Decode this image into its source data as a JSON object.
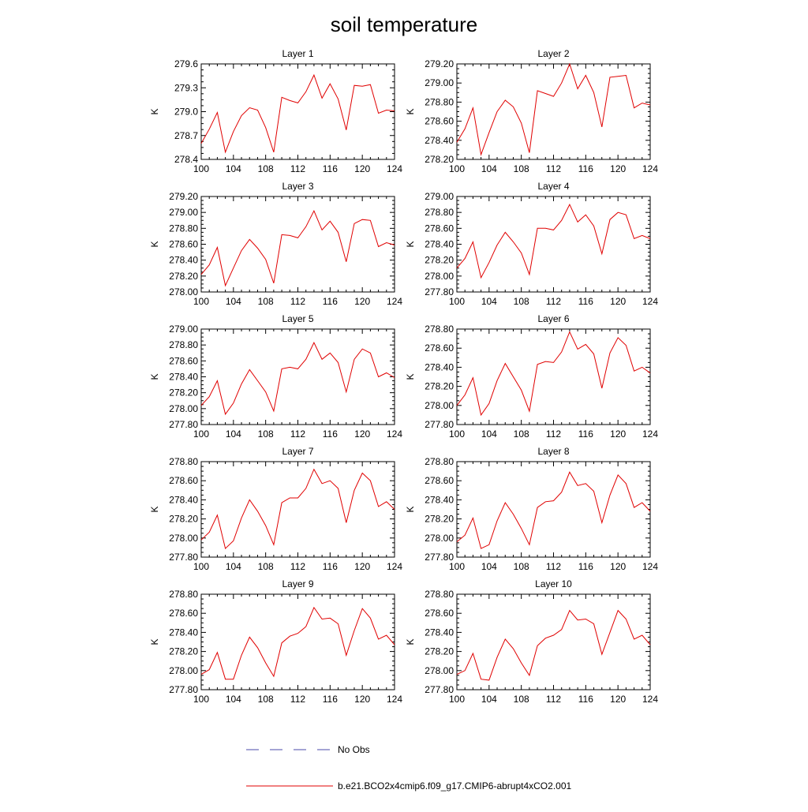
{
  "figure": {
    "title": "soil temperature",
    "legend": [
      {
        "label": "No Obs",
        "style": "dashed",
        "color": "#4a4aa8"
      },
      {
        "label": "b.e21.BCO2x4cmip6.f09_g17.CMIP6-abrupt4xCO2.001",
        "style": "solid",
        "color": "#e00000"
      }
    ]
  },
  "chart_data": [
    {
      "type": "line",
      "title": "Layer 1",
      "ylabel": "K",
      "xlim": [
        100,
        124
      ],
      "ylim": [
        278.4,
        279.6
      ],
      "yticks": [
        "278.4",
        "278.7",
        "279.0",
        "279.3",
        "279.6"
      ],
      "xticks": [
        "100",
        "104",
        "108",
        "112",
        "116",
        "120",
        "124"
      ],
      "series": [
        {
          "name": "b.e21.BCO2x4cmip6.f09_g17.CMIP6-abrupt4xCO2.001",
          "color": "#e00000",
          "x": [
            100,
            101,
            102,
            103,
            104,
            105,
            106,
            107,
            108,
            109,
            110,
            111,
            112,
            113,
            114,
            115,
            116,
            117,
            118,
            119,
            120,
            121,
            122,
            123,
            124
          ],
          "values": [
            278.6,
            278.78,
            278.99,
            278.49,
            278.75,
            278.95,
            279.05,
            279.02,
            278.8,
            278.49,
            279.18,
            279.14,
            279.11,
            279.25,
            279.46,
            279.17,
            279.35,
            279.16,
            278.77,
            279.33,
            279.32,
            279.34,
            278.98,
            279.02,
            279.01
          ]
        }
      ]
    },
    {
      "type": "line",
      "title": "Layer 2",
      "ylabel": "K",
      "xlim": [
        100,
        124
      ],
      "ylim": [
        278.2,
        279.2
      ],
      "yticks": [
        "278.20",
        "278.40",
        "278.60",
        "278.80",
        "279.00",
        "279.20"
      ],
      "xticks": [
        "100",
        "104",
        "108",
        "112",
        "116",
        "120",
        "124"
      ],
      "series": [
        {
          "name": "b.e21.BCO2x4cmip6.f09_g17.CMIP6-abrupt4xCO2.001",
          "color": "#e00000",
          "x": [
            100,
            101,
            102,
            103,
            104,
            105,
            106,
            107,
            108,
            109,
            110,
            111,
            112,
            113,
            114,
            115,
            116,
            117,
            118,
            119,
            120,
            121,
            122,
            123,
            124
          ],
          "values": [
            278.38,
            278.52,
            278.74,
            278.25,
            278.48,
            278.7,
            278.82,
            278.75,
            278.58,
            278.27,
            278.92,
            278.89,
            278.86,
            279.0,
            279.2,
            278.94,
            279.08,
            278.9,
            278.54,
            279.06,
            279.07,
            279.08,
            278.74,
            278.79,
            278.77
          ]
        }
      ]
    },
    {
      "type": "line",
      "title": "Layer 3",
      "ylabel": "K",
      "xlim": [
        100,
        124
      ],
      "ylim": [
        278.0,
        279.2
      ],
      "yticks": [
        "278.00",
        "278.20",
        "278.40",
        "278.60",
        "278.80",
        "279.00",
        "279.20"
      ],
      "xticks": [
        "100",
        "104",
        "108",
        "112",
        "116",
        "120",
        "124"
      ],
      "series": [
        {
          "name": "b.e21.BCO2x4cmip6.f09_g17.CMIP6-abrupt4xCO2.001",
          "color": "#e00000",
          "x": [
            100,
            101,
            102,
            103,
            104,
            105,
            106,
            107,
            108,
            109,
            110,
            111,
            112,
            113,
            114,
            115,
            116,
            117,
            118,
            119,
            120,
            121,
            122,
            123,
            124
          ],
          "values": [
            278.22,
            278.34,
            278.56,
            278.08,
            278.3,
            278.52,
            278.66,
            278.55,
            278.41,
            278.11,
            278.72,
            278.71,
            278.68,
            278.82,
            279.02,
            278.78,
            278.89,
            278.75,
            278.38,
            278.86,
            278.91,
            278.9,
            278.57,
            278.62,
            278.59
          ]
        }
      ]
    },
    {
      "type": "line",
      "title": "Layer 4",
      "ylabel": "K",
      "xlim": [
        100,
        124
      ],
      "ylim": [
        277.8,
        279.0
      ],
      "yticks": [
        "277.80",
        "278.00",
        "278.20",
        "278.40",
        "278.60",
        "278.80",
        "279.00"
      ],
      "xticks": [
        "100",
        "104",
        "108",
        "112",
        "116",
        "120",
        "124"
      ],
      "series": [
        {
          "name": "b.e21.BCO2x4cmip6.f09_g17.CMIP6-abrupt4xCO2.001",
          "color": "#e00000",
          "x": [
            100,
            101,
            102,
            103,
            104,
            105,
            106,
            107,
            108,
            109,
            110,
            111,
            112,
            113,
            114,
            115,
            116,
            117,
            118,
            119,
            120,
            121,
            122,
            123,
            124
          ],
          "values": [
            278.1,
            278.22,
            278.43,
            277.98,
            278.17,
            278.39,
            278.55,
            278.43,
            278.29,
            278.02,
            278.6,
            278.6,
            278.58,
            278.7,
            278.9,
            278.68,
            278.77,
            278.63,
            278.28,
            278.71,
            278.8,
            278.77,
            278.47,
            278.51,
            278.47
          ]
        }
      ]
    },
    {
      "type": "line",
      "title": "Layer 5",
      "ylabel": "K",
      "xlim": [
        100,
        124
      ],
      "ylim": [
        277.8,
        279.0
      ],
      "yticks": [
        "277.80",
        "278.00",
        "278.20",
        "278.40",
        "278.60",
        "278.80",
        "279.00"
      ],
      "xticks": [
        "100",
        "104",
        "108",
        "112",
        "116",
        "120",
        "124"
      ],
      "series": [
        {
          "name": "b.e21.BCO2x4cmip6.f09_g17.CMIP6-abrupt4xCO2.001",
          "color": "#e00000",
          "x": [
            100,
            101,
            102,
            103,
            104,
            105,
            106,
            107,
            108,
            109,
            110,
            111,
            112,
            113,
            114,
            115,
            116,
            117,
            118,
            119,
            120,
            121,
            122,
            123,
            124
          ],
          "values": [
            278.04,
            278.15,
            278.35,
            277.93,
            278.07,
            278.31,
            278.49,
            278.35,
            278.21,
            277.97,
            278.5,
            278.52,
            278.5,
            278.62,
            278.83,
            278.62,
            278.7,
            278.58,
            278.21,
            278.62,
            278.75,
            278.7,
            278.4,
            278.45,
            278.39
          ]
        }
      ]
    },
    {
      "type": "line",
      "title": "Layer 6",
      "ylabel": "K",
      "xlim": [
        100,
        124
      ],
      "ylim": [
        277.8,
        278.8
      ],
      "yticks": [
        "277.80",
        "278.00",
        "278.20",
        "278.40",
        "278.60",
        "278.80"
      ],
      "xticks": [
        "100",
        "104",
        "108",
        "112",
        "116",
        "120",
        "124"
      ],
      "series": [
        {
          "name": "b.e21.BCO2x4cmip6.f09_g17.CMIP6-abrupt4xCO2.001",
          "color": "#e00000",
          "x": [
            100,
            101,
            102,
            103,
            104,
            105,
            106,
            107,
            108,
            109,
            110,
            111,
            112,
            113,
            114,
            115,
            116,
            117,
            118,
            119,
            120,
            121,
            122,
            123,
            124
          ],
          "values": [
            278.0,
            278.11,
            278.29,
            277.9,
            278.02,
            278.26,
            278.44,
            278.3,
            278.16,
            277.94,
            278.43,
            278.46,
            278.45,
            278.56,
            278.77,
            278.59,
            278.64,
            278.54,
            278.18,
            278.55,
            278.71,
            278.63,
            278.36,
            278.4,
            278.34
          ]
        }
      ]
    },
    {
      "type": "line",
      "title": "Layer 7",
      "ylabel": "K",
      "xlim": [
        100,
        124
      ],
      "ylim": [
        277.8,
        278.8
      ],
      "yticks": [
        "277.80",
        "278.00",
        "278.20",
        "278.40",
        "278.60",
        "278.80"
      ],
      "xticks": [
        "100",
        "104",
        "108",
        "112",
        "116",
        "120",
        "124"
      ],
      "series": [
        {
          "name": "b.e21.BCO2x4cmip6.f09_g17.CMIP6-abrupt4xCO2.001",
          "color": "#e00000",
          "x": [
            100,
            101,
            102,
            103,
            104,
            105,
            106,
            107,
            108,
            109,
            110,
            111,
            112,
            113,
            114,
            115,
            116,
            117,
            118,
            119,
            120,
            121,
            122,
            123,
            124
          ],
          "values": [
            277.98,
            278.06,
            278.24,
            277.89,
            277.97,
            278.21,
            278.4,
            278.28,
            278.13,
            277.93,
            278.37,
            278.42,
            278.42,
            278.52,
            278.72,
            278.57,
            278.6,
            278.52,
            278.16,
            278.5,
            278.68,
            278.6,
            278.33,
            278.38,
            278.3
          ]
        }
      ]
    },
    {
      "type": "line",
      "title": "Layer 8",
      "ylabel": "K",
      "xlim": [
        100,
        124
      ],
      "ylim": [
        277.8,
        278.8
      ],
      "yticks": [
        "277.80",
        "278.00",
        "278.20",
        "278.40",
        "278.60",
        "278.80"
      ],
      "xticks": [
        "100",
        "104",
        "108",
        "112",
        "116",
        "120",
        "124"
      ],
      "series": [
        {
          "name": "b.e21.BCO2x4cmip6.f09_g17.CMIP6-abrupt4xCO2.001",
          "color": "#e00000",
          "x": [
            100,
            101,
            102,
            103,
            104,
            105,
            106,
            107,
            108,
            109,
            110,
            111,
            112,
            113,
            114,
            115,
            116,
            117,
            118,
            119,
            120,
            121,
            122,
            123,
            124
          ],
          "values": [
            277.96,
            278.03,
            278.21,
            277.89,
            277.93,
            278.18,
            278.37,
            278.25,
            278.1,
            277.93,
            278.32,
            278.38,
            278.39,
            278.48,
            278.69,
            278.55,
            278.57,
            278.49,
            278.16,
            278.45,
            278.66,
            278.57,
            278.32,
            278.37,
            278.28
          ]
        }
      ]
    },
    {
      "type": "line",
      "title": "Layer 9",
      "ylabel": "K",
      "xlim": [
        100,
        124
      ],
      "ylim": [
        277.8,
        278.8
      ],
      "yticks": [
        "277.80",
        "278.00",
        "278.20",
        "278.40",
        "278.60",
        "278.80"
      ],
      "xticks": [
        "100",
        "104",
        "108",
        "112",
        "116",
        "120",
        "124"
      ],
      "series": [
        {
          "name": "b.e21.BCO2x4cmip6.f09_g17.CMIP6-abrupt4xCO2.001",
          "color": "#e00000",
          "x": [
            100,
            101,
            102,
            103,
            104,
            105,
            106,
            107,
            108,
            109,
            110,
            111,
            112,
            113,
            114,
            115,
            116,
            117,
            118,
            119,
            120,
            121,
            122,
            123,
            124
          ],
          "values": [
            277.96,
            278.01,
            278.19,
            277.91,
            277.91,
            278.16,
            278.35,
            278.24,
            278.08,
            277.94,
            278.29,
            278.36,
            278.39,
            278.46,
            278.66,
            278.54,
            278.55,
            278.49,
            278.16,
            278.42,
            278.65,
            278.55,
            278.33,
            278.37,
            278.27
          ]
        }
      ]
    },
    {
      "type": "line",
      "title": "Layer 10",
      "ylabel": "K",
      "xlim": [
        100,
        124
      ],
      "ylim": [
        277.8,
        278.8
      ],
      "yticks": [
        "277.80",
        "278.00",
        "278.20",
        "278.40",
        "278.60",
        "278.80"
      ],
      "xticks": [
        "100",
        "104",
        "108",
        "112",
        "116",
        "120",
        "124"
      ],
      "series": [
        {
          "name": "b.e21.BCO2x4cmip6.f09_g17.CMIP6-abrupt4xCO2.001",
          "color": "#e00000",
          "x": [
            100,
            101,
            102,
            103,
            104,
            105,
            106,
            107,
            108,
            109,
            110,
            111,
            112,
            113,
            114,
            115,
            116,
            117,
            118,
            119,
            120,
            121,
            122,
            123,
            124
          ],
          "values": [
            277.96,
            278.0,
            278.18,
            277.91,
            277.9,
            278.14,
            278.33,
            278.23,
            278.08,
            277.95,
            278.26,
            278.34,
            278.37,
            278.43,
            278.63,
            278.53,
            278.54,
            278.49,
            278.17,
            278.4,
            278.63,
            278.54,
            278.33,
            278.37,
            278.27
          ]
        }
      ]
    }
  ]
}
